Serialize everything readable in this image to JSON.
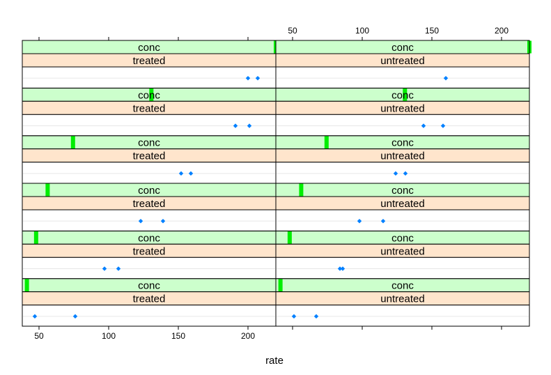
{
  "chart_data": {
    "type": "scatter",
    "layout": "lattice dotplot, 2 columns x 6 rows",
    "xlabel": "rate",
    "xlim": [
      38,
      220
    ],
    "x_ticks": [
      50,
      100,
      150,
      200
    ],
    "x_tick_labels": [
      "50",
      "100",
      "150",
      "200"
    ],
    "strip_variables": [
      "conc",
      "state"
    ],
    "conc_range": [
      0,
      1.1
    ],
    "colors": {
      "conc_strip": "#ccffcc",
      "state_strip": "#ffe5cc",
      "conc_indicator": "#00ee00",
      "point": "#0080ff",
      "reference_line": "#e6e6e6"
    },
    "panels": [
      {
        "state": "treated",
        "conc_label": "conc",
        "row": 1,
        "conc": 0.02,
        "rates": [
          47,
          76
        ]
      },
      {
        "state": "untreated",
        "conc_label": "conc",
        "row": 1,
        "conc": 0.02,
        "rates": [
          51,
          67
        ]
      },
      {
        "state": "treated",
        "conc_label": "conc",
        "row": 2,
        "conc": 0.06,
        "rates": [
          97,
          107
        ]
      },
      {
        "state": "untreated",
        "conc_label": "conc",
        "row": 2,
        "conc": 0.06,
        "rates": [
          84,
          86
        ]
      },
      {
        "state": "treated",
        "conc_label": "conc",
        "row": 3,
        "conc": 0.11,
        "rates": [
          123,
          139
        ]
      },
      {
        "state": "untreated",
        "conc_label": "conc",
        "row": 3,
        "conc": 0.11,
        "rates": [
          98,
          115
        ]
      },
      {
        "state": "treated",
        "conc_label": "conc",
        "row": 4,
        "conc": 0.22,
        "rates": [
          152,
          159
        ]
      },
      {
        "state": "untreated",
        "conc_label": "conc",
        "row": 4,
        "conc": 0.22,
        "rates": [
          124,
          131
        ]
      },
      {
        "state": "treated",
        "conc_label": "conc",
        "row": 5,
        "conc": 0.56,
        "rates": [
          191,
          201
        ]
      },
      {
        "state": "untreated",
        "conc_label": "conc",
        "row": 5,
        "conc": 0.56,
        "rates": [
          144,
          158
        ]
      },
      {
        "state": "treated",
        "conc_label": "conc",
        "row": 6,
        "conc": 1.1,
        "rates": [
          200,
          207
        ]
      },
      {
        "state": "untreated",
        "conc_label": "conc",
        "row": 6,
        "conc": 1.1,
        "rates": [
          160
        ]
      }
    ]
  }
}
